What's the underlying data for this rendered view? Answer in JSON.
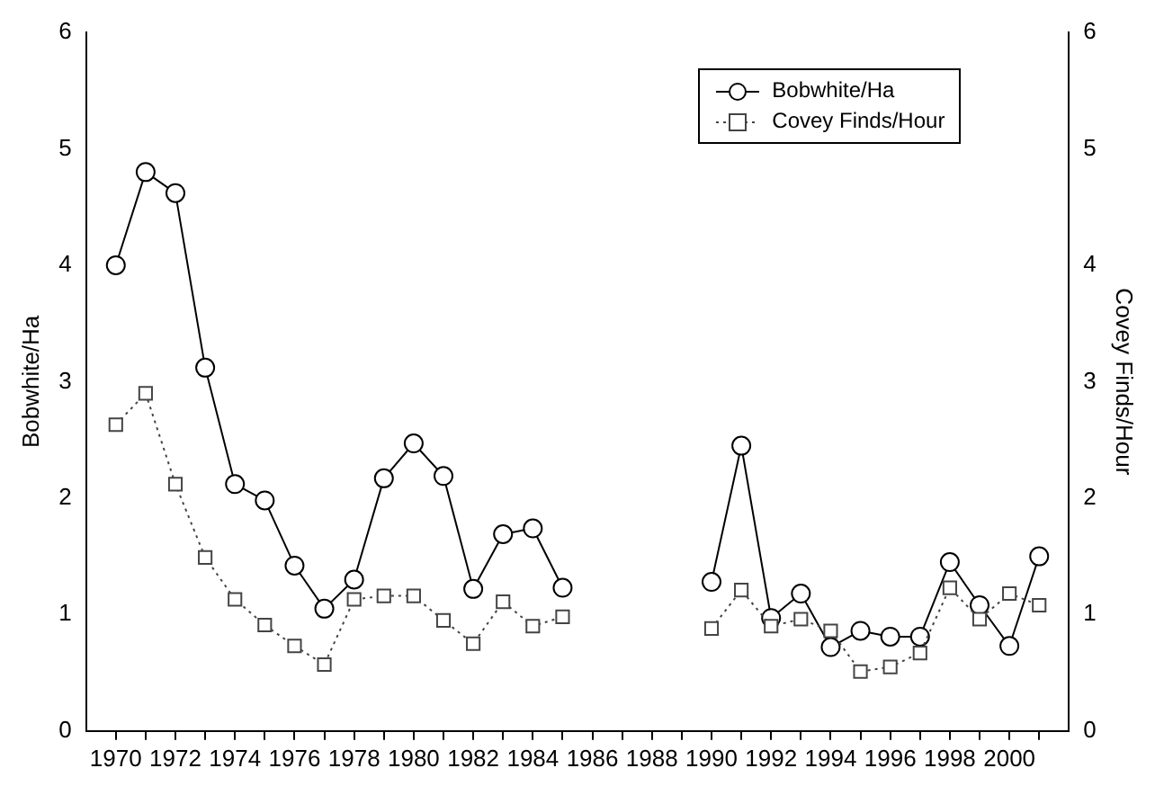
{
  "chart_data": {
    "type": "line",
    "ylabel": "Bobwhite/Ha",
    "y2label": "Covey Finds/Hour",
    "x": [
      1970,
      1971,
      1972,
      1973,
      1974,
      1975,
      1976,
      1977,
      1978,
      1979,
      1980,
      1981,
      1982,
      1983,
      1984,
      1985,
      1986,
      1987,
      1988,
      1989,
      1990,
      1991,
      1992,
      1993,
      1994,
      1995,
      1996,
      1997,
      1998,
      1999,
      2000,
      2001
    ],
    "series": [
      {
        "name": "Bobwhite/Ha",
        "color": "#000000",
        "marker": "circle",
        "line_style": "solid",
        "values": [
          4.0,
          4.8,
          4.62,
          3.12,
          2.12,
          1.98,
          1.42,
          1.05,
          1.3,
          2.17,
          2.47,
          2.19,
          1.22,
          1.69,
          1.74,
          1.23,
          null,
          null,
          null,
          null,
          1.28,
          2.45,
          0.97,
          1.18,
          0.72,
          0.86,
          0.81,
          0.81,
          1.45,
          1.08,
          0.73,
          1.5
        ]
      },
      {
        "name": "Covey Finds/Hour",
        "color": "#444444",
        "marker": "square",
        "line_style": "dotted",
        "axis": "y2",
        "values": [
          2.63,
          2.9,
          2.12,
          1.49,
          1.13,
          0.91,
          0.73,
          0.57,
          1.13,
          1.16,
          1.16,
          0.95,
          0.75,
          1.11,
          0.9,
          0.98,
          null,
          null,
          null,
          null,
          0.88,
          1.21,
          0.9,
          0.96,
          0.86,
          0.51,
          0.55,
          0.67,
          1.23,
          0.96,
          1.18,
          1.08
        ]
      }
    ],
    "xlim": [
      1969,
      2002
    ],
    "xticks": [
      1970,
      {
        "value": 1971,
        "label": null
      },
      1972,
      {
        "value": 1973,
        "label": null
      },
      1974,
      {
        "value": 1975,
        "label": null
      },
      1976,
      {
        "value": 1977,
        "label": null
      },
      1978,
      {
        "value": 1979,
        "label": null
      },
      1980,
      {
        "value": 1981,
        "label": null
      },
      1982,
      {
        "value": 1983,
        "label": null
      },
      1984,
      {
        "value": 1985,
        "label": null
      },
      1986,
      {
        "value": 1987,
        "label": null
      },
      1988,
      {
        "value": 1989,
        "label": null
      },
      1990,
      {
        "value": 1991,
        "label": null
      },
      1992,
      {
        "value": 1993,
        "label": null
      },
      1994,
      {
        "value": 1995,
        "label": null
      },
      1996,
      {
        "value": 1997,
        "label": null
      },
      1998,
      {
        "value": 1999,
        "label": null
      },
      2000,
      {
        "value": 2001,
        "label": null
      }
    ],
    "ylim": [
      0,
      6
    ],
    "yticks": [
      0,
      1,
      2,
      3,
      4,
      5,
      6
    ],
    "y2lim": [
      0,
      6
    ],
    "y2ticks": [
      0,
      1,
      2,
      3,
      4,
      5,
      6
    ],
    "legend": "top right",
    "grid": false
  }
}
